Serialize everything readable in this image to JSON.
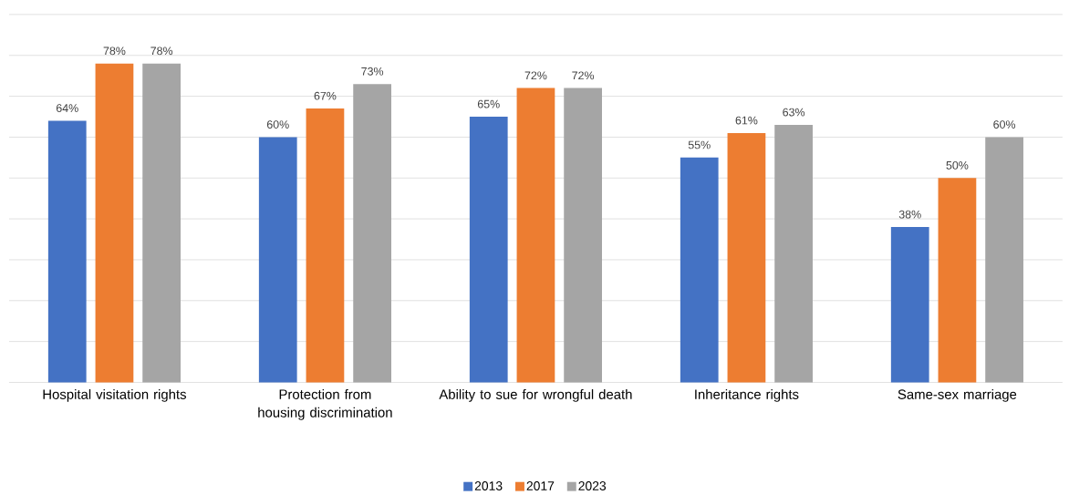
{
  "chart_data": {
    "type": "bar",
    "categories": [
      "Hospital visitation rights",
      "Protection from housing discrimination",
      "Ability to sue for wrongful death",
      "Inheritance rights",
      "Same-sex marriage"
    ],
    "series": [
      {
        "name": "2013",
        "color": "#4472c4",
        "values": [
          64,
          60,
          65,
          55,
          38
        ],
        "value_labels": [
          "64%",
          "60%",
          "65%",
          "55%",
          "38%"
        ]
      },
      {
        "name": "2017",
        "color": "#ed7d31",
        "values": [
          78,
          67,
          72,
          61,
          50
        ],
        "value_labels": [
          "78%",
          "67%",
          "72%",
          "61%",
          "50%"
        ]
      },
      {
        "name": "2023",
        "color": "#a5a5a5",
        "values": [
          78,
          73,
          72,
          63,
          60
        ],
        "value_labels": [
          "78%",
          "73%",
          "72%",
          "63%",
          "60%"
        ]
      }
    ],
    "ylim": [
      0,
      90
    ],
    "yticks": [
      {
        "value": 0,
        "label": null
      },
      {
        "value": 10,
        "label": null
      },
      {
        "value": 20,
        "label": null
      },
      {
        "value": 30,
        "label": null
      },
      {
        "value": 40,
        "label": null
      },
      {
        "value": 50,
        "label": null
      },
      {
        "value": 60,
        "label": null
      },
      {
        "value": 70,
        "label": null
      },
      {
        "value": 80,
        "label": null
      },
      {
        "value": 90,
        "label": null
      }
    ],
    "grid": "y",
    "legend": "bottom",
    "tick_labels": "x"
  }
}
